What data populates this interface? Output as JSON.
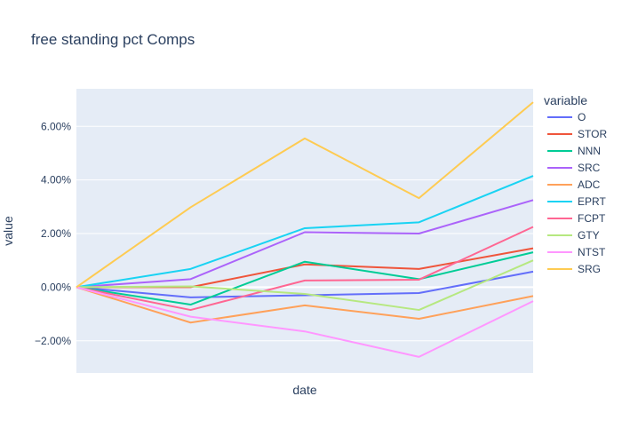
{
  "chart_data": {
    "type": "line",
    "title": "free standing pct Comps",
    "xlabel": "date",
    "ylabel": "value",
    "x": [
      0,
      1,
      2,
      3,
      4
    ],
    "ylim": [
      -3.2,
      7.4
    ],
    "yticks": [
      -2,
      0,
      2,
      4,
      6
    ],
    "ytick_labels": [
      "−2.00%",
      "0.00%",
      "2.00%",
      "4.00%",
      "6.00%"
    ],
    "grid": true,
    "legend_title": "variable",
    "legend_position": "right",
    "series": [
      {
        "name": "O",
        "color": "#636efa",
        "values": [
          0,
          -0.38,
          -0.3,
          -0.22,
          0.58
        ]
      },
      {
        "name": "STOR",
        "color": "#EF553B",
        "values": [
          0,
          0.0,
          0.85,
          0.68,
          1.45
        ]
      },
      {
        "name": "NNN",
        "color": "#00cc96",
        "values": [
          0,
          -0.65,
          0.95,
          0.3,
          1.3
        ]
      },
      {
        "name": "SRC",
        "color": "#ab63fa",
        "values": [
          0,
          0.3,
          2.05,
          2.0,
          3.25
        ]
      },
      {
        "name": "ADC",
        "color": "#FFA15A",
        "values": [
          0,
          -1.32,
          -0.68,
          -1.18,
          -0.33
        ]
      },
      {
        "name": "EPRT",
        "color": "#19d3f3",
        "values": [
          0,
          0.68,
          2.2,
          2.42,
          4.15
        ]
      },
      {
        "name": "FCPT",
        "color": "#FF6692",
        "values": [
          0,
          -0.85,
          0.25,
          0.28,
          2.25
        ]
      },
      {
        "name": "GTY",
        "color": "#B6E880",
        "values": [
          0,
          0.03,
          -0.25,
          -0.85,
          1.0
        ]
      },
      {
        "name": "NTST",
        "color": "#FF97FF",
        "values": [
          0,
          -1.1,
          -1.65,
          -2.6,
          -0.52
        ]
      },
      {
        "name": "SRG",
        "color": "#FECB52",
        "values": [
          0,
          2.98,
          5.55,
          3.32,
          6.9
        ]
      }
    ]
  }
}
